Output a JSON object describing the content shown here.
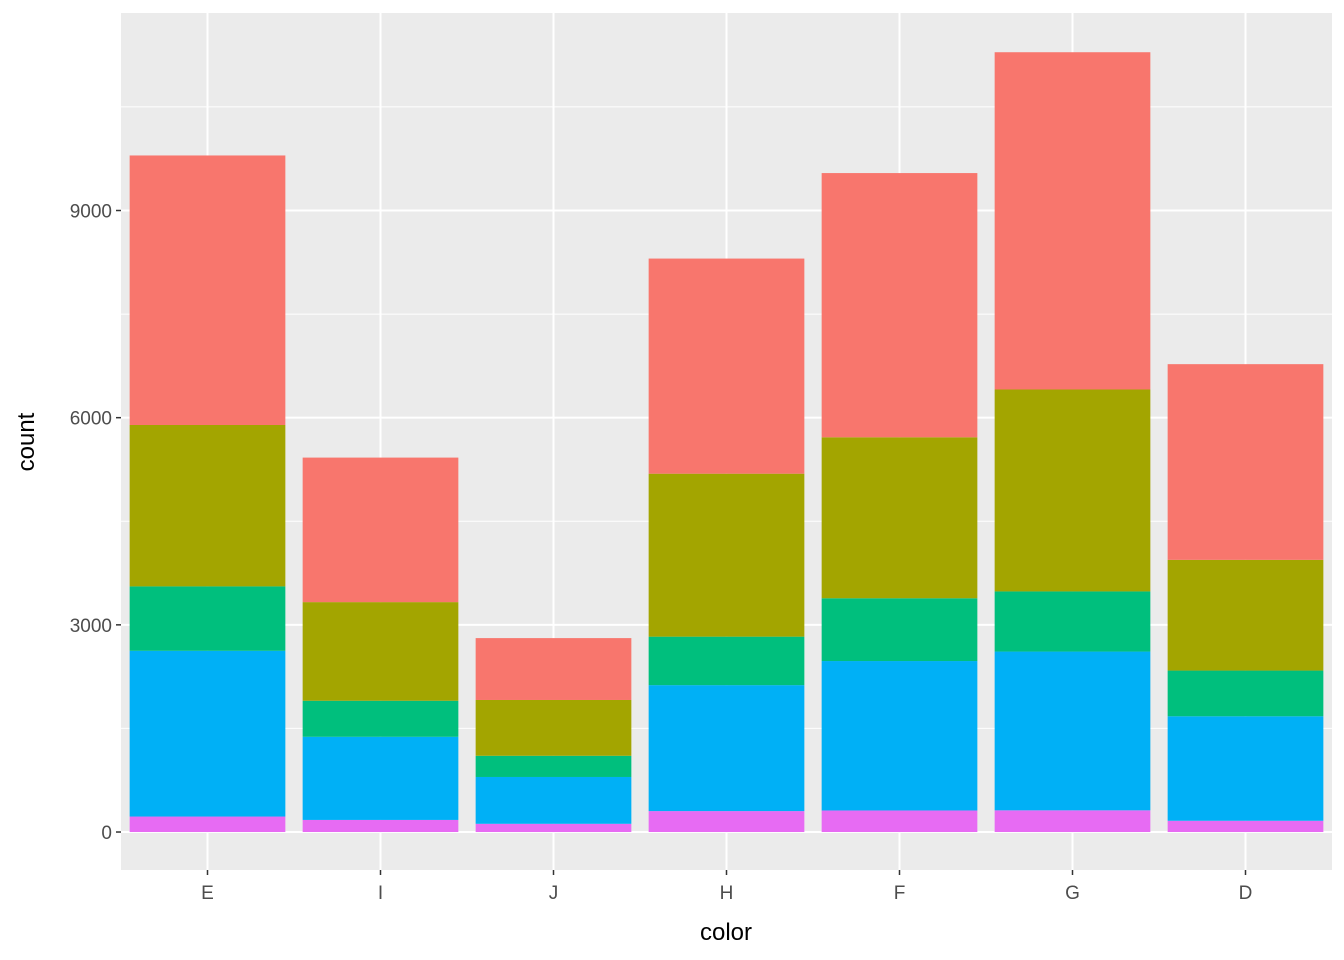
{
  "chart_data": {
    "type": "bar",
    "stacked": true,
    "title": "",
    "xlabel": "color",
    "ylabel": "count",
    "categories": [
      "E",
      "I",
      "J",
      "H",
      "F",
      "G",
      "D"
    ],
    "ylim": [
      -550,
      11860
    ],
    "yticks": [
      0,
      3000,
      6000,
      9000
    ],
    "grid": true,
    "legend": "none",
    "series_bottom_to_top": [
      {
        "fill": "#E76BF3",
        "values": [
          224,
          175,
          119,
          303,
          312,
          314,
          163
        ]
      },
      {
        "fill": "#00B0F6",
        "values": [
          2400,
          1204,
          678,
          1824,
          2164,
          2299,
          1513
        ]
      },
      {
        "fill": "#00BF7D",
        "values": [
          933,
          522,
          307,
          702,
          909,
          871,
          662
        ]
      },
      {
        "fill": "#A3A500",
        "values": [
          2337,
          1428,
          808,
          2360,
          2331,
          2924,
          1603
        ]
      },
      {
        "fill": "#F8766D",
        "values": [
          3903,
          2093,
          896,
          3115,
          3826,
          4884,
          2834
        ]
      }
    ],
    "totals": [
      9797,
      5422,
      2808,
      8304,
      9542,
      11292,
      6775
    ]
  }
}
